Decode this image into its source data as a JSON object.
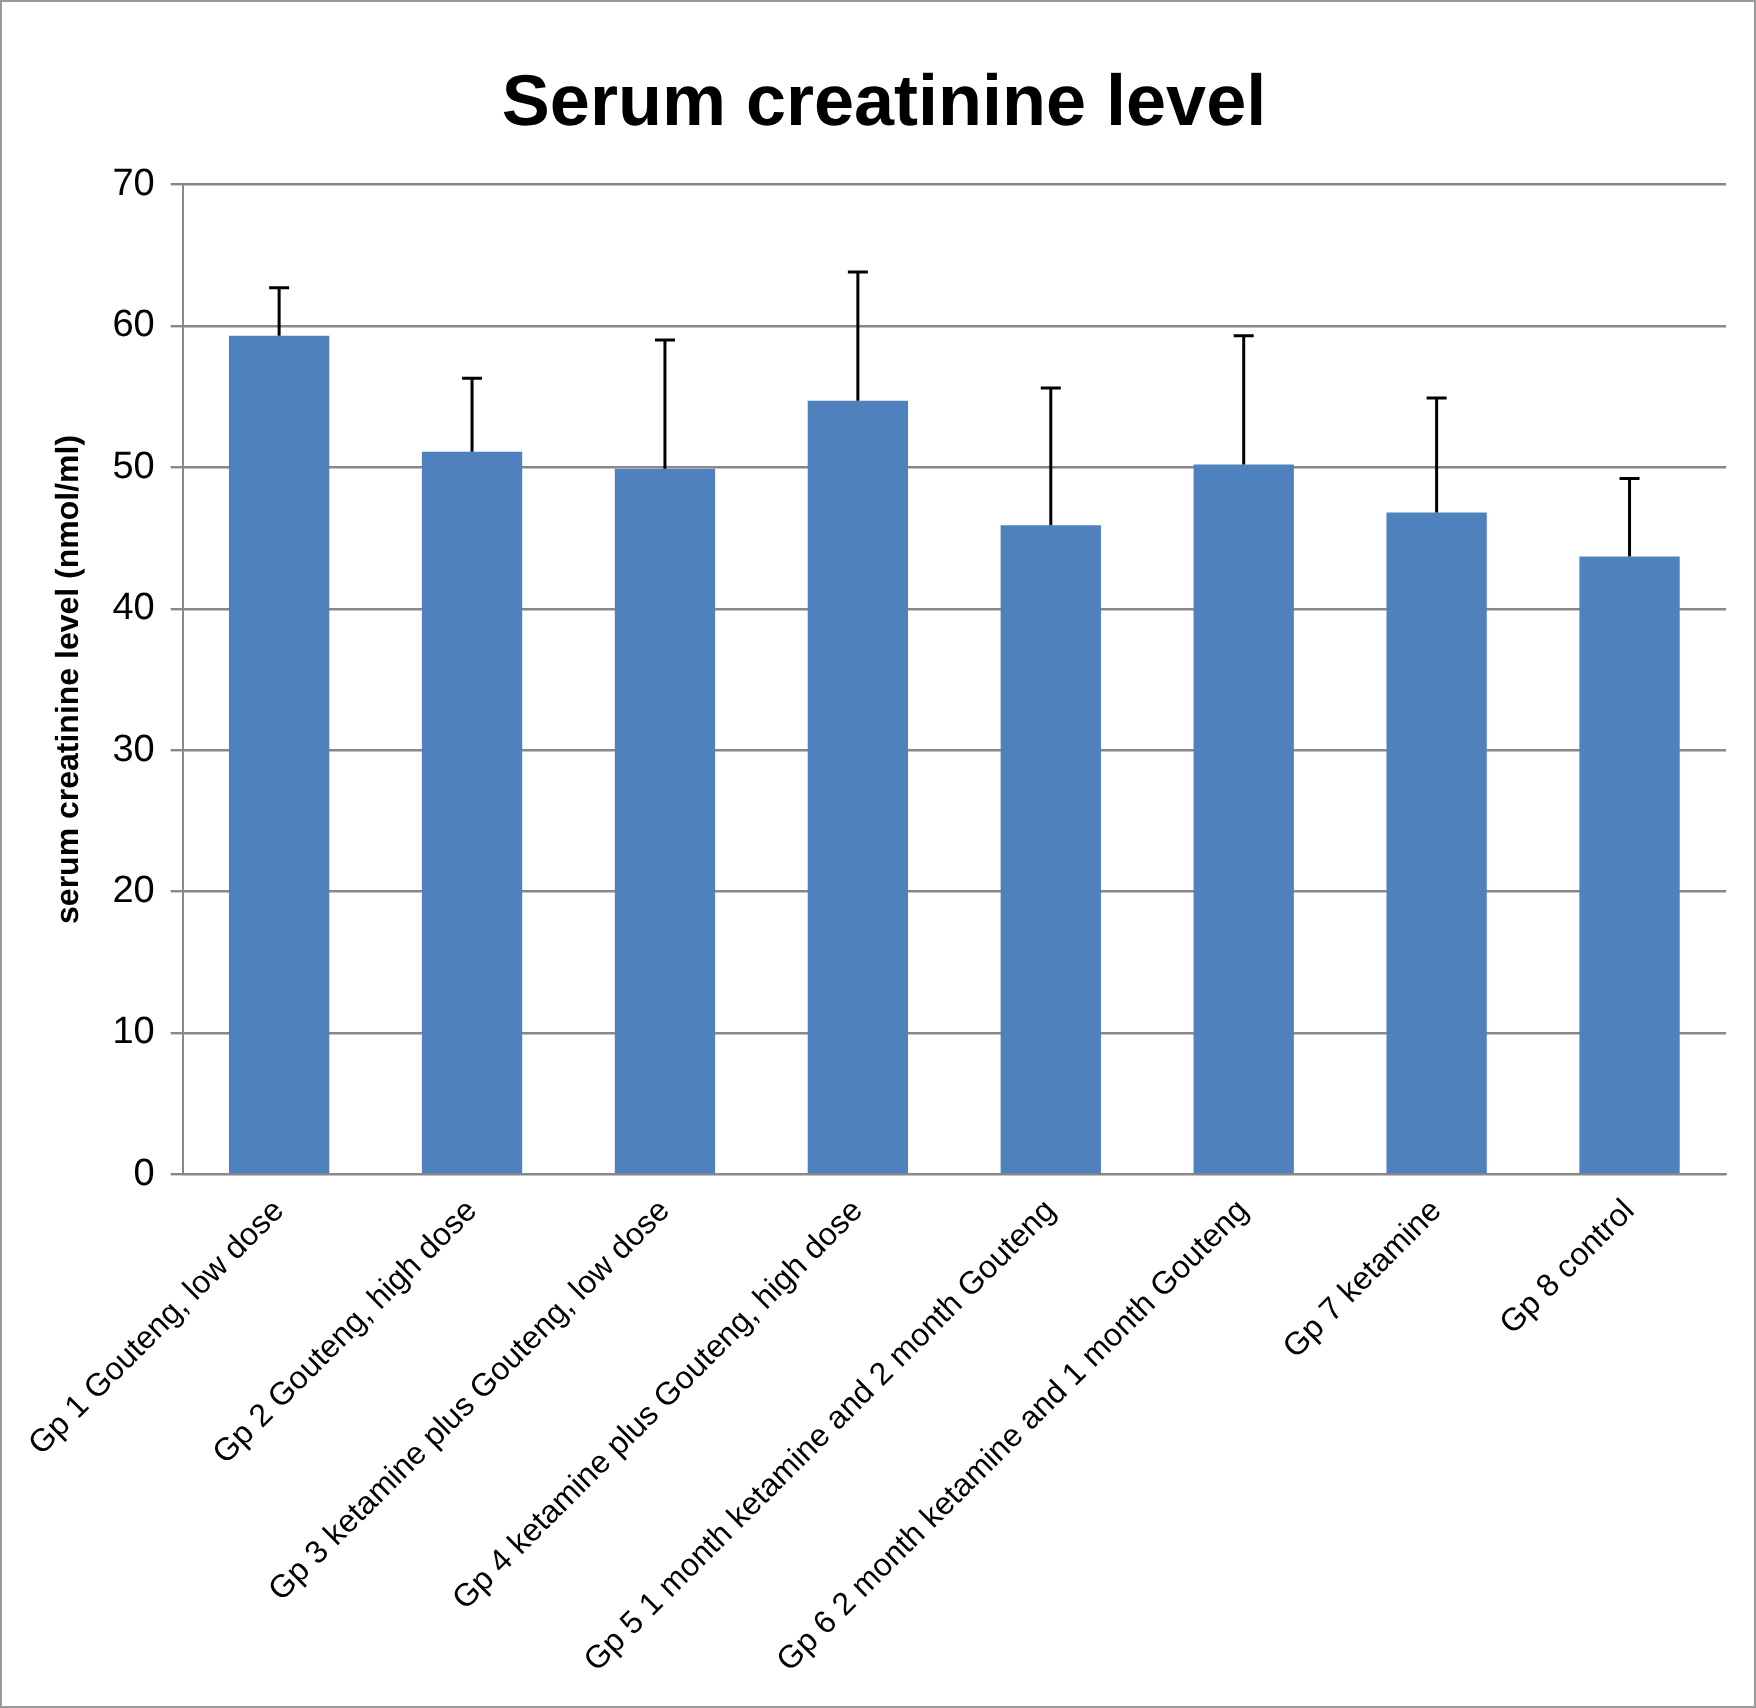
{
  "chart_data": {
    "type": "bar",
    "title": "Serum creatinine level",
    "ylabel": "serum creatinine level (nmol/ml)",
    "categories": [
      "Gp 1 Gouteng, low dose",
      "Gp 2 Gouteng, high dose",
      "Gp 3 ketamine plus Gouteng, low dose",
      "Gp 4 ketamine plus Gouteng, high dose",
      "Gp 5 1 month ketamine and 2 month Gouteng",
      "Gp 6 2 month ketamine and 1 month Gouteng",
      "Gp 7 ketamine",
      "Gp 8 control"
    ],
    "values": [
      59.3,
      51.1,
      49.9,
      54.7,
      45.9,
      50.2,
      46.8,
      43.7
    ],
    "errors": [
      [
        59.3,
        62.7
      ],
      [
        51.1,
        56.3
      ],
      [
        49.9,
        59.0
      ],
      [
        54.7,
        63.8
      ],
      [
        45.9,
        55.6
      ],
      [
        50.2,
        59.3
      ],
      [
        46.8,
        54.9
      ],
      [
        43.7,
        49.2
      ]
    ],
    "color": "#4f81bd",
    "ylim": [
      0,
      70
    ],
    "yticks": [
      0,
      10,
      20,
      30,
      40,
      50,
      60,
      70
    ],
    "grid": "y",
    "legend": false
  }
}
